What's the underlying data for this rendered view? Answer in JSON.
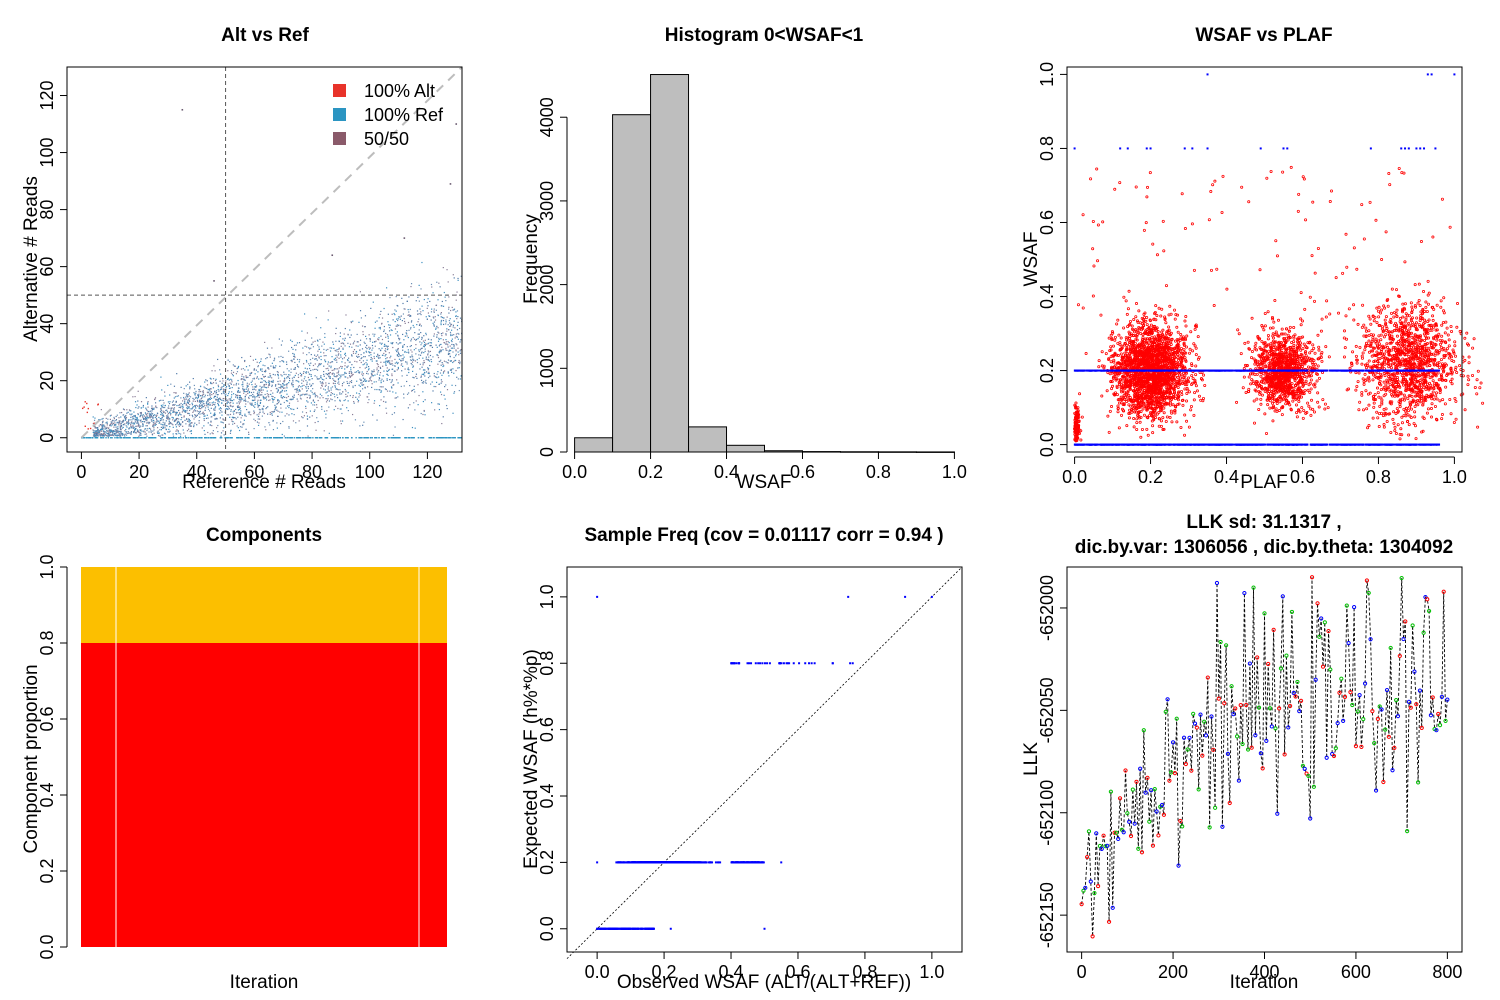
{
  "chart_data": [
    {
      "type": "scatter",
      "title": "Alt vs Ref",
      "xlabel": "Reference # Reads",
      "ylabel": "Alternative # Reads",
      "xlim": [
        -5,
        132
      ],
      "ylim": [
        -5,
        130
      ],
      "xticks": [
        "0",
        "20",
        "40",
        "60",
        "80",
        "100",
        "120"
      ],
      "yticks": [
        "0",
        "20",
        "40",
        "60",
        "80",
        "100",
        "120"
      ],
      "reference_lines": {
        "vertical_x": 50,
        "horizontal_y": 50,
        "diagonal": "y = x"
      },
      "legend_position": "top-right",
      "legend": [
        {
          "label": "100% Alt",
          "color": "#e8332a"
        },
        {
          "label": "100% Ref",
          "color": "#2b95c2"
        },
        {
          "label": "50/50",
          "color": "#8a5a6a"
        }
      ],
      "points_summary": "dense cloud of mixed sites roughly following y = 0.25*x with spread; baseline of 100% Ref sites at y = 0",
      "outliers": [
        {
          "x": 35,
          "y": 115
        },
        {
          "x": 130,
          "y": 110
        },
        {
          "x": 128,
          "y": 89
        },
        {
          "x": 112,
          "y": 70
        },
        {
          "x": 46,
          "y": 55
        },
        {
          "x": 87,
          "y": 64
        }
      ],
      "grid": false
    },
    {
      "type": "bar",
      "title": "Histogram 0<WSAF<1",
      "xlabel": "WSAF",
      "ylabel": "Frequency",
      "xlim": [
        -0.02,
        1.02
      ],
      "ylim": [
        0,
        4600
      ],
      "xticks": [
        "0.0",
        "0.2",
        "0.4",
        "0.6",
        "0.8",
        "1.0"
      ],
      "yticks": [
        "0",
        "1000",
        "2000",
        "3000",
        "4000"
      ],
      "bin_width": 0.1,
      "bins": [
        {
          "from": 0.0,
          "to": 0.1,
          "count": 170
        },
        {
          "from": 0.1,
          "to": 0.2,
          "count": 4030
        },
        {
          "from": 0.2,
          "to": 0.3,
          "count": 4510
        },
        {
          "from": 0.3,
          "to": 0.4,
          "count": 300
        },
        {
          "from": 0.4,
          "to": 0.5,
          "count": 80
        },
        {
          "from": 0.5,
          "to": 0.6,
          "count": 15
        },
        {
          "from": 0.6,
          "to": 0.7,
          "count": 5
        },
        {
          "from": 0.7,
          "to": 0.8,
          "count": 3
        },
        {
          "from": 0.8,
          "to": 0.9,
          "count": 2
        },
        {
          "from": 0.9,
          "to": 1.0,
          "count": 1
        }
      ],
      "bar_color": "#bebebe",
      "grid": false
    },
    {
      "type": "scatter",
      "title": "WSAF vs PLAF",
      "xlabel": "PLAF",
      "ylabel": "WSAF",
      "xlim": [
        -0.02,
        1.02
      ],
      "ylim": [
        -0.02,
        1.02
      ],
      "xticks": [
        "0.0",
        "0.2",
        "0.4",
        "0.6",
        "0.8",
        "1.0"
      ],
      "yticks": [
        "0.0",
        "0.2",
        "0.4",
        "0.6",
        "0.8",
        "1.0"
      ],
      "series": [
        {
          "label_visible": false,
          "color": "#ff0000",
          "role": "observed",
          "clusters": [
            {
              "plaf": 0.2,
              "wsaf": 0.2,
              "spread": 0.06
            },
            {
              "plaf": 0.55,
              "wsaf": 0.2,
              "spread": 0.05
            },
            {
              "plaf": 0.88,
              "wsaf": 0.22,
              "spread": 0.08
            },
            {
              "plaf": 0.005,
              "wsaf": 0.05,
              "spread": 0.03
            }
          ]
        },
        {
          "label_visible": false,
          "color": "#0000ff",
          "role": "expected",
          "levels": [
            0.0,
            0.2,
            0.8,
            1.0
          ]
        }
      ],
      "grid": false
    },
    {
      "type": "bar",
      "title": "Components",
      "xlabel": "Iteration",
      "ylabel": "Component proportion",
      "ylim": [
        0,
        1
      ],
      "yticks": [
        "0.0",
        "0.2",
        "0.4",
        "0.6",
        "0.8",
        "1.0"
      ],
      "stacked": true,
      "iterations": 800,
      "components": [
        {
          "proportion": 0.8,
          "color": "#ff0000"
        },
        {
          "proportion": 0.2,
          "color": "#fcbf00"
        }
      ],
      "grid": false
    },
    {
      "type": "scatter",
      "title": "Sample Freq (cov = 0.01117 corr =  0.94 )",
      "xlabel": "Observed WSAF (ALT/(ALT+REF))",
      "ylabel": "Expected WSAF (h%*%p)",
      "xlim": [
        -0.09,
        1.09
      ],
      "ylim": [
        -0.07,
        1.09
      ],
      "xticks": [
        "0.0",
        "0.2",
        "0.4",
        "0.6",
        "0.8",
        "1.0"
      ],
      "yticks": [
        "0.0",
        "0.2",
        "0.4",
        "0.6",
        "0.8",
        "1.0"
      ],
      "reference_lines": {
        "diagonal": "y = x"
      },
      "levels": [
        {
          "expected": 0.0,
          "observed_range": [
            0.0,
            0.17
          ]
        },
        {
          "expected": 0.2,
          "observed_range": [
            0.05,
            0.5
          ]
        },
        {
          "expected": 0.8,
          "observed_range": [
            0.4,
            0.8
          ]
        },
        {
          "expected": 1.0,
          "observed_range": [
            0.0,
            1.0
          ]
        }
      ],
      "outliers": [
        {
          "x": 0.0,
          "y": 1.0
        },
        {
          "x": 0.75,
          "y": 1.0
        },
        {
          "x": 0.92,
          "y": 1.0
        },
        {
          "x": 1.0,
          "y": 1.0
        },
        {
          "x": 0.0,
          "y": 0.2
        },
        {
          "x": 0.55,
          "y": 0.2
        },
        {
          "x": 0.22,
          "y": 0.0
        },
        {
          "x": 0.5,
          "y": 0.0
        }
      ],
      "point_color": "#0000ff",
      "grid": false
    },
    {
      "type": "line",
      "title": "LLK sd: 31.1317 ,",
      "subtitle": "dic.by.var:  1306056 , dic.by.theta:  1304092",
      "xlabel": "Iteration",
      "ylabel": "LLK",
      "xlim": [
        -32,
        832
      ],
      "ylim": [
        -652168,
        -651980
      ],
      "xticks": [
        "0",
        "200",
        "400",
        "600",
        "800"
      ],
      "yticks": [
        "-652150",
        "-652100",
        "-652050",
        "-652000"
      ],
      "trend": "rises from about -652140 at iteration 0 to about -652040 by iteration 800 with large oscillation",
      "line_style": "dashed black",
      "point_colors": [
        "#ff0000",
        "#00c000",
        "#0000ff"
      ],
      "grid": false
    }
  ]
}
